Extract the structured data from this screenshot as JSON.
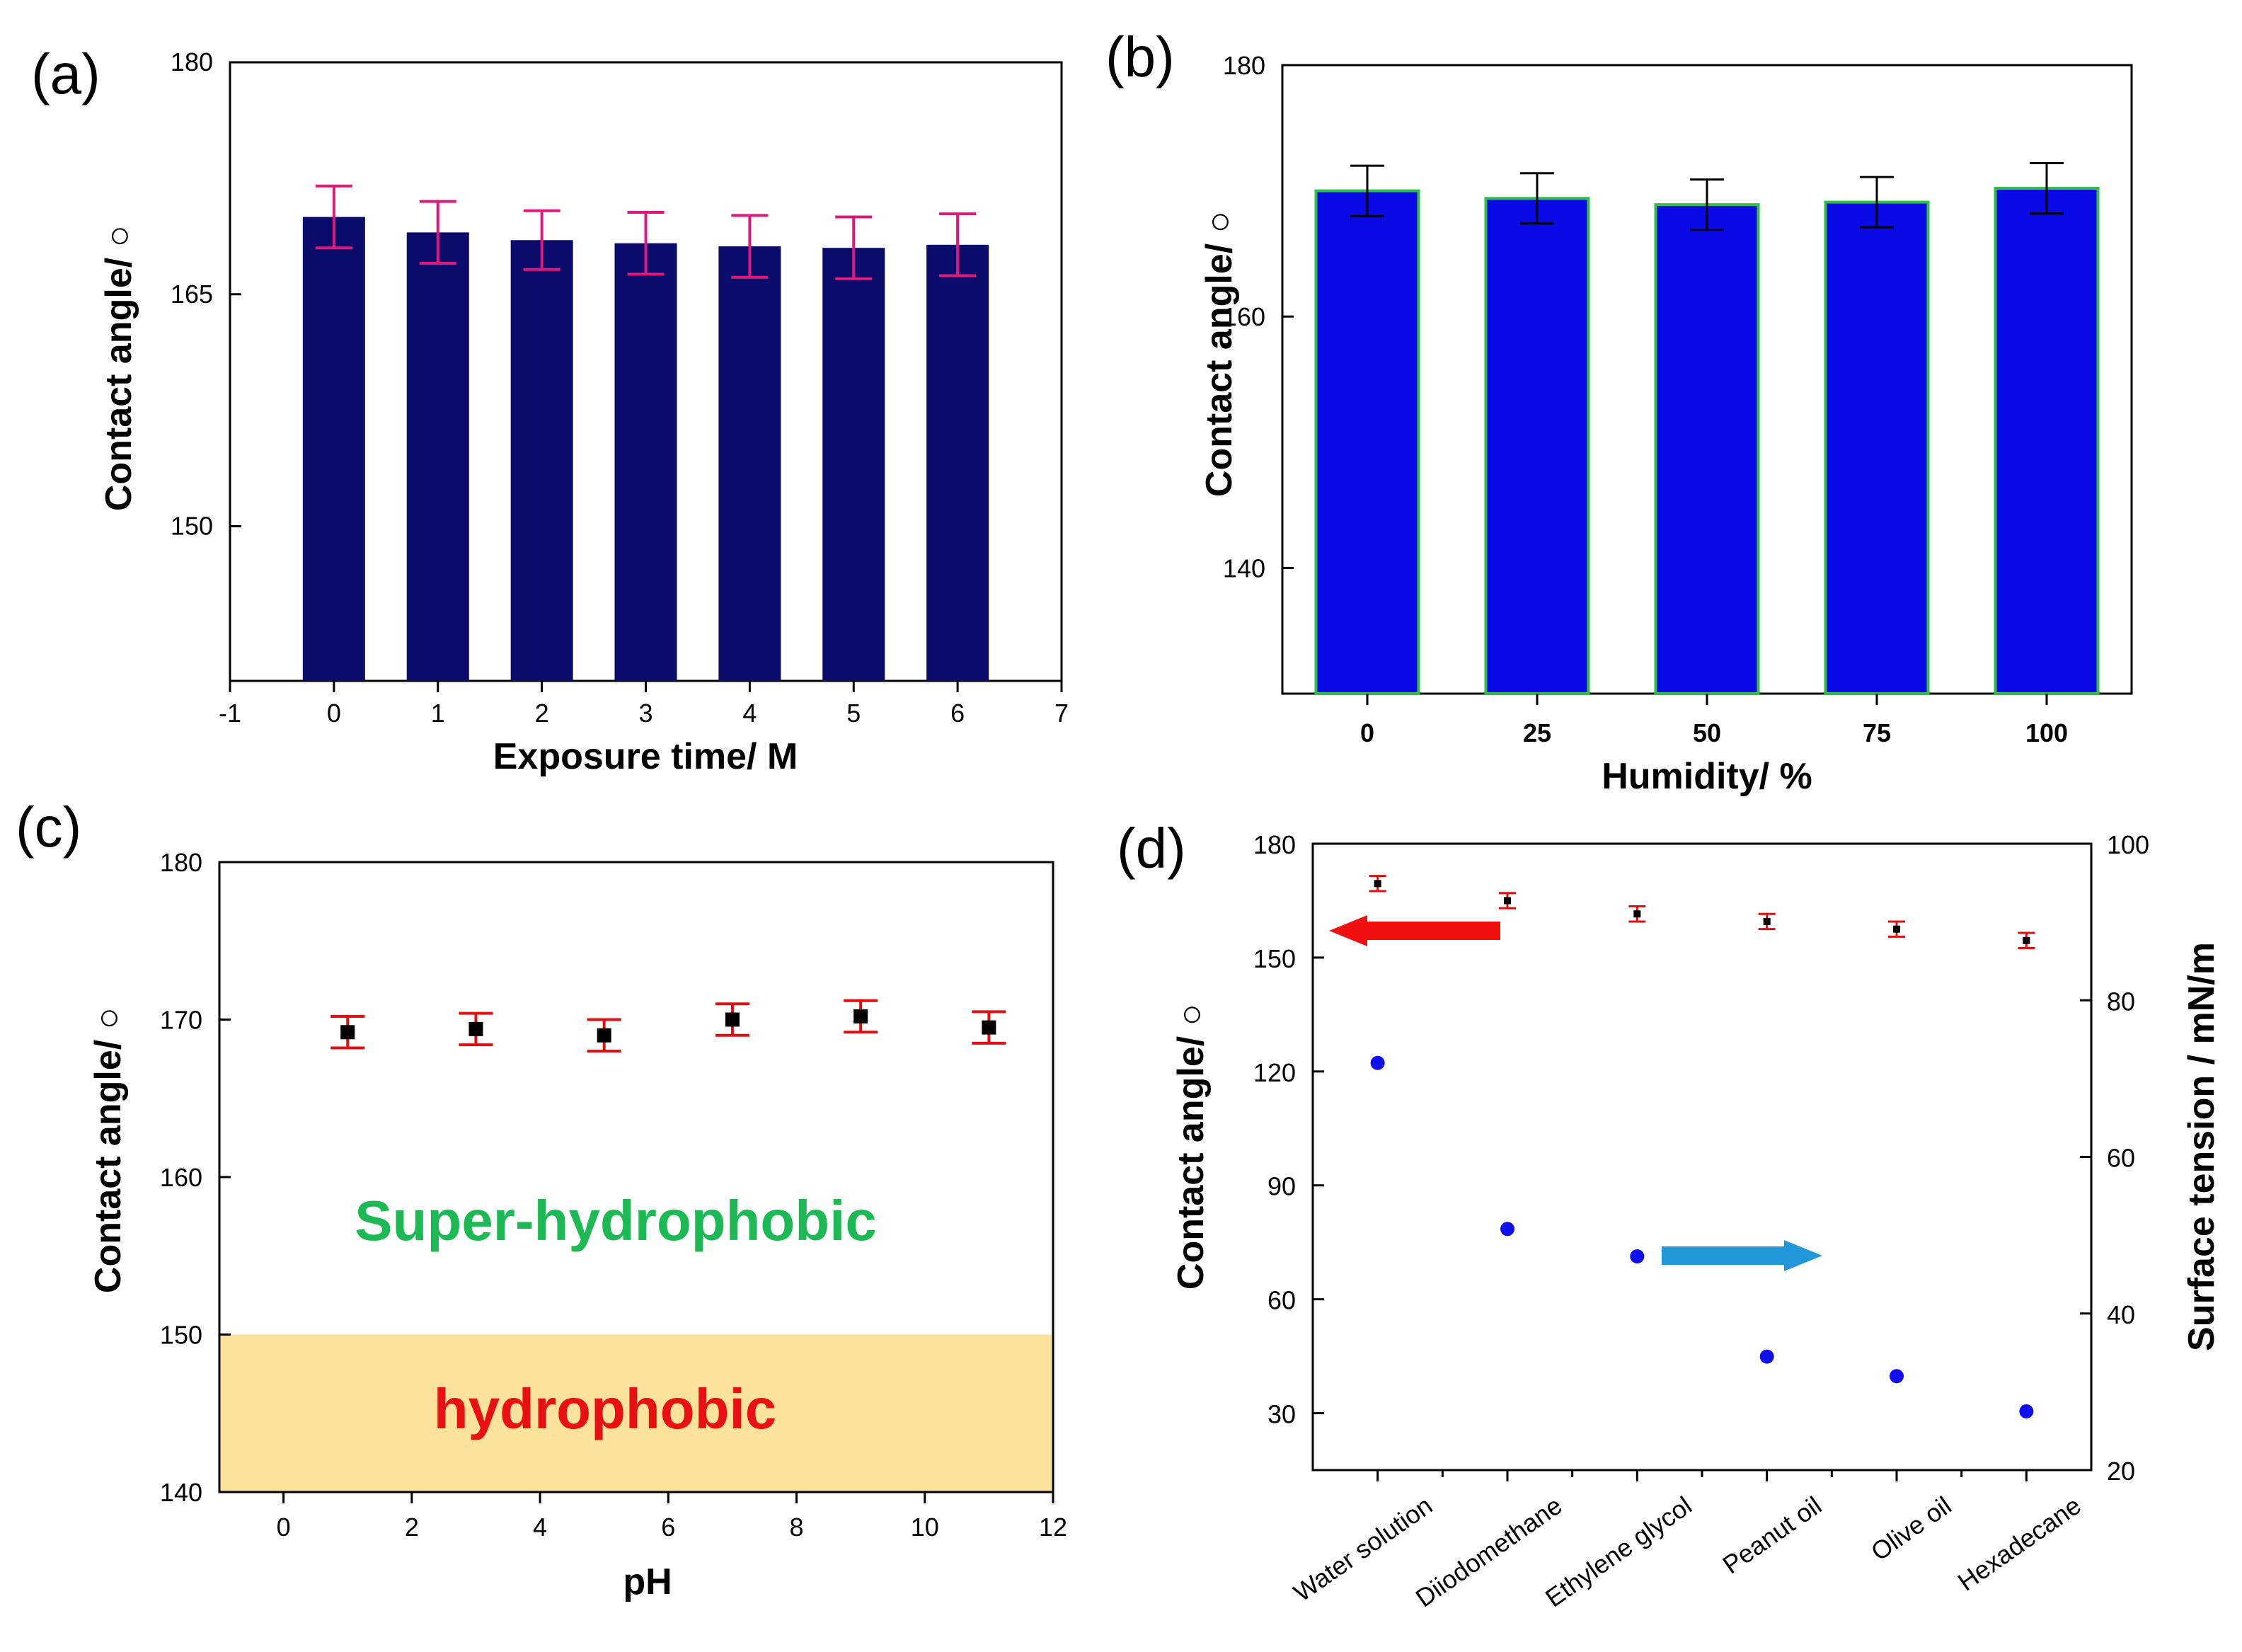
{
  "figure": {
    "colors": {
      "a_bar": "#0b0b6b",
      "a_err": "#e0187c",
      "b_bar": "#0a0ae6",
      "b_edge": "#2fbf4a",
      "b_err": "#000000",
      "c_point": "#000000",
      "c_err": "#e01010",
      "c_band": "#fce29a",
      "c_super": "#1db954",
      "c_hydro": "#e81010",
      "d_ca": "#000000",
      "d_ca_err": "#e01010",
      "d_st": "#1010ee",
      "d_cat": "#e81010",
      "d_arrow_left": "#f01010",
      "d_arrow_right": "#2196d8"
    }
  },
  "chart_data": [
    {
      "id": "a",
      "panel_label": "(a)",
      "type": "bar",
      "xlabel": "Exposure time/ M",
      "ylabel": "Contact angle/ ○",
      "xlim": [
        -1,
        7
      ],
      "ylim": [
        140,
        180
      ],
      "x_ticks": [
        "-1",
        "0",
        "1",
        "2",
        "3",
        "4",
        "5",
        "6",
        "7"
      ],
      "y_ticks": [
        "150",
        "165",
        "180"
      ],
      "x": [
        0,
        1,
        2,
        3,
        4,
        5,
        6
      ],
      "values": [
        170.0,
        169.0,
        168.5,
        168.3,
        168.1,
        168.0,
        168.2
      ],
      "errors": [
        2.0,
        2.0,
        1.9,
        2.0,
        2.0,
        2.0,
        2.0
      ]
    },
    {
      "id": "b",
      "panel_label": "(b)",
      "type": "bar",
      "xlabel": "Humidity/ %",
      "ylabel": "Contact angle/ ○",
      "ylim": [
        130,
        180
      ],
      "categories": [
        "0",
        "25",
        "50",
        "75",
        "100"
      ],
      "y_ticks": [
        "140",
        "160",
        "180"
      ],
      "values": [
        170.0,
        169.4,
        168.9,
        169.1,
        170.2
      ],
      "errors": [
        2.0,
        2.0,
        2.0,
        2.0,
        2.0
      ]
    },
    {
      "id": "c",
      "panel_label": "(c)",
      "type": "scatter",
      "xlabel": "pH",
      "ylabel": "Contact angle/ ○",
      "xlim": [
        -1,
        12
      ],
      "ylim": [
        140,
        180
      ],
      "x_ticks": [
        "0",
        "2",
        "4",
        "6",
        "8",
        "10",
        "12"
      ],
      "y_ticks": [
        "140",
        "150",
        "160",
        "170",
        "180"
      ],
      "x": [
        1,
        3,
        5,
        7,
        9,
        11
      ],
      "y": [
        169.2,
        169.4,
        169.0,
        170.0,
        170.2,
        169.5
      ],
      "errors": [
        1.0,
        1.0,
        1.0,
        1.0,
        1.0,
        1.0
      ],
      "band": [
        140,
        150
      ],
      "annotations": {
        "upper": "Super-hydrophobic",
        "lower": "hydrophobic"
      }
    },
    {
      "id": "d",
      "panel_label": "(d)",
      "type": "scatter",
      "categories": [
        "Water solution",
        "Diiodomethane",
        "Ethylene glycol",
        "Peanut oil",
        "Olive oil",
        "Hexadecane"
      ],
      "ylabel": "Contact angle/ ○",
      "y2label": "Surface tension / mN/m",
      "ylim": [
        15,
        180
      ],
      "y_ticks": [
        "30",
        "60",
        "90",
        "120",
        "150",
        "180"
      ],
      "y2lim": [
        20,
        100
      ],
      "y2_ticks": [
        "20",
        "40",
        "60",
        "80",
        "100"
      ],
      "series": [
        {
          "name": "Contact angle",
          "axis": "left",
          "values": [
            169.5,
            165.0,
            161.5,
            159.5,
            157.5,
            154.5
          ],
          "errors": [
            2.0,
            2.0,
            2.0,
            2.0,
            2.0,
            2.0
          ]
        },
        {
          "name": "Surface tension",
          "axis": "right",
          "values": [
            72.0,
            50.8,
            47.3,
            34.5,
            32.0,
            27.5
          ]
        }
      ]
    }
  ]
}
